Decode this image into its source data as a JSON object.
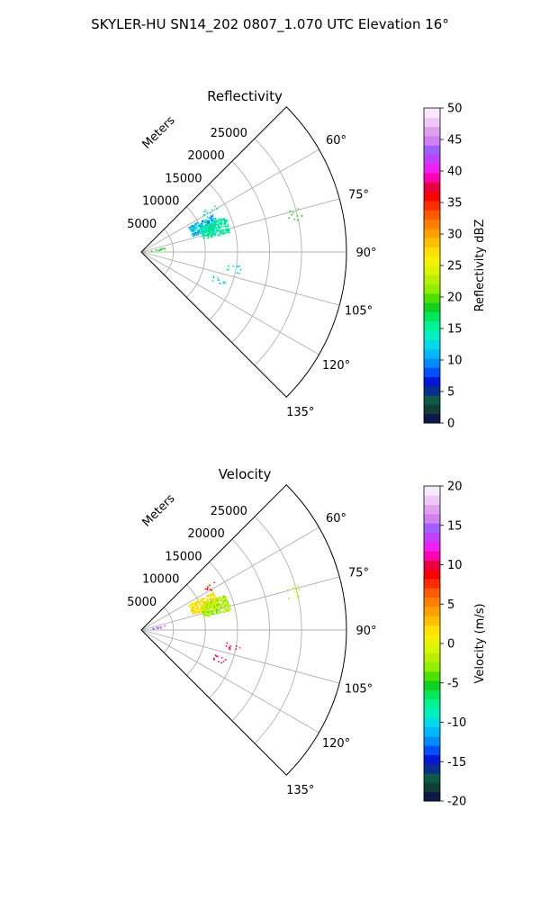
{
  "figure": {
    "title": "SKYLER-HU  SN14_202  0807_1.070 UTC Elevation 16°"
  },
  "chart_data": [
    {
      "type": "heatmap",
      "projection": "polar-sector",
      "title": "Reflectivity",
      "radial_label": "Meters",
      "radial_ticks": [
        "5000",
        "10000",
        "15000",
        "20000",
        "25000"
      ],
      "radial_tick_values": [
        5000,
        10000,
        15000,
        20000,
        25000
      ],
      "angle_ticks": [
        "60°",
        "75°",
        "90°",
        "105°",
        "120°",
        "135°"
      ],
      "angle_tick_values": [
        60,
        75,
        90,
        105,
        120,
        135
      ],
      "theta_range_deg": [
        45,
        135
      ],
      "r_range": [
        0,
        32000
      ],
      "grid": true,
      "colorbar": {
        "label": "Reflectivity dBZ",
        "vmin": 0,
        "vmax": 50,
        "ticks": [
          "0",
          "5",
          "10",
          "15",
          "20",
          "25",
          "30",
          "35",
          "40",
          "45",
          "50"
        ]
      },
      "data_note_clusters": [
        {
          "theta_deg": 67,
          "r": 10500,
          "value_range": [
            8,
            16
          ]
        },
        {
          "theta_deg": 72,
          "r": 12000,
          "value_range": [
            12,
            18
          ]
        },
        {
          "theta_deg": 58,
          "r": 12500,
          "value_range": [
            10,
            16
          ]
        },
        {
          "theta_deg": 76,
          "r": 24500,
          "value_range": [
            18,
            20
          ]
        },
        {
          "theta_deg": 100,
          "r": 14500,
          "value_range": [
            10,
            18
          ]
        },
        {
          "theta_deg": 110,
          "r": 13000,
          "value_range": [
            10,
            16
          ]
        },
        {
          "theta_deg": 80,
          "r": 2500,
          "value_range": [
            18,
            20
          ]
        }
      ]
    },
    {
      "type": "heatmap",
      "projection": "polar-sector",
      "title": "Velocity",
      "radial_label": "Meters",
      "radial_ticks": [
        "5000",
        "10000",
        "15000",
        "20000",
        "25000"
      ],
      "radial_tick_values": [
        5000,
        10000,
        15000,
        20000,
        25000
      ],
      "angle_ticks": [
        "60°",
        "75°",
        "90°",
        "105°",
        "120°",
        "135°"
      ],
      "angle_tick_values": [
        60,
        75,
        90,
        105,
        120,
        135
      ],
      "theta_range_deg": [
        45,
        135
      ],
      "r_range": [
        0,
        32000
      ],
      "grid": true,
      "colorbar": {
        "label": "Velocity (m/s)",
        "vmin": -20,
        "vmax": 20,
        "ticks": [
          "-20",
          "-15",
          "-10",
          "-5",
          "0",
          "5",
          "10",
          "15",
          "20"
        ]
      },
      "data_note_clusters": [
        {
          "theta_deg": 67,
          "r": 10500,
          "value_range": [
            0,
            3
          ]
        },
        {
          "theta_deg": 72,
          "r": 12000,
          "value_range": [
            -4,
            0
          ]
        },
        {
          "theta_deg": 58,
          "r": 12500,
          "value_range": [
            5,
            10
          ]
        },
        {
          "theta_deg": 76,
          "r": 24500,
          "value_range": [
            -2,
            0
          ]
        },
        {
          "theta_deg": 100,
          "r": 14500,
          "value_range": [
            8,
            12
          ]
        },
        {
          "theta_deg": 110,
          "r": 13000,
          "value_range": [
            8,
            12
          ]
        },
        {
          "theta_deg": 80,
          "r": 2500,
          "value_range": [
            14,
            16
          ]
        }
      ]
    }
  ],
  "colors": {
    "grid": "#b0b0b0",
    "frame": "#000000"
  }
}
